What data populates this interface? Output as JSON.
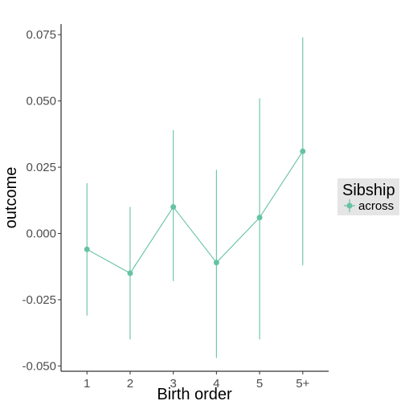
{
  "chart_data": {
    "type": "line",
    "xlabel": "Birth order",
    "ylabel": "outcome",
    "categories": [
      "1",
      "2",
      "3",
      "4",
      "5",
      "5+"
    ],
    "ylim": [
      -0.052,
      0.079
    ],
    "yticks": [
      -0.05,
      -0.025,
      0.0,
      0.025,
      0.05,
      0.075
    ],
    "ytick_labels": [
      "-0.050",
      "-0.025",
      "0.000",
      "0.025",
      "0.050",
      "0.075"
    ],
    "grid": false,
    "legend": {
      "title": "Sibship",
      "placement": "right"
    },
    "series": [
      {
        "name": "across",
        "color": "#66c2a5",
        "values": [
          -0.006,
          -0.015,
          0.01,
          -0.011,
          0.006,
          0.031
        ],
        "lower": [
          -0.031,
          -0.04,
          -0.018,
          -0.047,
          -0.04,
          -0.012
        ],
        "upper": [
          0.019,
          0.01,
          0.039,
          0.024,
          0.051,
          0.074
        ]
      }
    ]
  }
}
